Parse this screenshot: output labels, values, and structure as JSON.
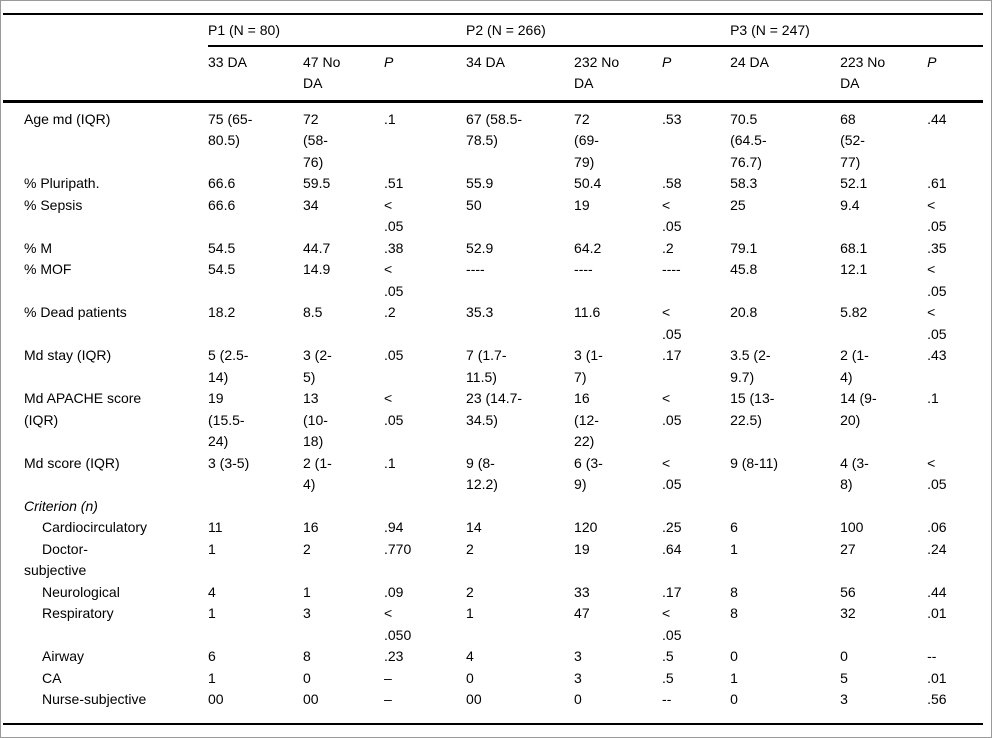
{
  "table": {
    "groups": [
      {
        "label": "P1 (N = 80)"
      },
      {
        "label": "P2 (N = 266)"
      },
      {
        "label": "P3 (N = 247)"
      }
    ],
    "subheaders": [
      "33 DA",
      "47 No\nDA",
      "P",
      "34 DA",
      "232 No\nDA",
      "P",
      "24 DA",
      "223 No\nDA",
      "P"
    ],
    "rows": [
      {
        "label": "Age md (IQR)",
        "indent": false,
        "italic": false,
        "cells": [
          "75 (65-\n80.5)",
          "72\n(58-\n76)",
          ".1",
          "67 (58.5-\n78.5)",
          "72\n(69-\n79)",
          ".53",
          "70.5\n(64.5-\n76.7)",
          "68\n(52-\n77)",
          ".44"
        ]
      },
      {
        "label": "% Pluripath.",
        "indent": false,
        "italic": false,
        "cells": [
          "66.6",
          "59.5",
          ".51",
          "55.9",
          "50.4",
          ".58",
          "58.3",
          "52.1",
          ".61"
        ]
      },
      {
        "label": "% Sepsis",
        "indent": false,
        "italic": false,
        "cells": [
          "66.6",
          "34",
          "<\n.05",
          "50",
          "19",
          "<\n.05",
          "25",
          "9.4",
          "<\n.05"
        ]
      },
      {
        "label": "% M",
        "indent": false,
        "italic": false,
        "cells": [
          "54.5",
          "44.7",
          ".38",
          "52.9",
          "64.2",
          ".2",
          "79.1",
          "68.1",
          ".35"
        ]
      },
      {
        "label": "% MOF",
        "indent": false,
        "italic": false,
        "cells": [
          "54.5",
          "14.9",
          "<\n.05",
          "----",
          "----",
          "----",
          "45.8",
          "12.1",
          "<\n.05"
        ]
      },
      {
        "label": "% Dead patients",
        "indent": false,
        "italic": false,
        "cells": [
          "18.2",
          "8.5",
          ".2",
          "35.3",
          "11.6",
          "<\n.05",
          "20.8",
          "5.82",
          "<\n.05"
        ]
      },
      {
        "label": "Md stay (IQR)",
        "indent": false,
        "italic": false,
        "cells": [
          "5 (2.5-\n14)",
          "3 (2-\n5)",
          ".05",
          "7 (1.7-\n11.5)",
          "3 (1-\n7)",
          ".17",
          "3.5 (2-\n9.7)",
          "2 (1-\n4)",
          ".43"
        ]
      },
      {
        "label": "Md APACHE score\n(IQR)",
        "indent": false,
        "italic": false,
        "cells": [
          "19\n(15.5-\n24)",
          "13\n(10-\n18)",
          "<\n.05",
          "23 (14.7-\n34.5)",
          "16\n(12-\n22)",
          "<\n.05",
          "15 (13-\n22.5)",
          "14 (9-\n20)",
          ".1"
        ]
      },
      {
        "label": "Md score (IQR)",
        "indent": false,
        "italic": false,
        "cells": [
          "3 (3-5)",
          "2 (1-\n4)",
          ".1",
          "9 (8-\n12.2)",
          "6 (3-\n9)",
          "<\n.05",
          "9 (8-11)",
          "4 (3-\n8)",
          "<\n.05"
        ]
      },
      {
        "label": "Criterion (n)",
        "indent": false,
        "italic": true,
        "cells": [
          "",
          "",
          "",
          "",
          "",
          "",
          "",
          "",
          ""
        ]
      },
      {
        "label": "Cardiocirculatory",
        "indent": true,
        "italic": false,
        "cells": [
          "11",
          "16",
          ".94",
          "14",
          "120",
          ".25",
          "6",
          "100",
          ".06"
        ]
      },
      {
        "label": "Doctor-\nsubjective",
        "indent": true,
        "italic": false,
        "cells": [
          "1",
          "2",
          ".770",
          "2",
          "19",
          ".64",
          "1",
          "27",
          ".24"
        ]
      },
      {
        "label": "Neurological",
        "indent": true,
        "italic": false,
        "cells": [
          "4",
          "1",
          ".09",
          "2",
          "33",
          ".17",
          "8",
          "56",
          ".44"
        ]
      },
      {
        "label": "Respiratory",
        "indent": true,
        "italic": false,
        "cells": [
          "1",
          "3",
          "<\n.050",
          "1",
          "47",
          "<\n.05",
          "8",
          "32",
          ".01"
        ]
      },
      {
        "label": "Airway",
        "indent": true,
        "italic": false,
        "cells": [
          "6",
          "8",
          ".23",
          "4",
          "3",
          ".5",
          "0",
          "0",
          "--"
        ]
      },
      {
        "label": "CA",
        "indent": true,
        "italic": false,
        "cells": [
          "1",
          "0",
          "–",
          "0",
          "3",
          ".5",
          "1",
          "5",
          ".01"
        ]
      },
      {
        "label": "Nurse-subjective",
        "indent": true,
        "italic": false,
        "cells": [
          "00",
          "00",
          "–",
          "00",
          "0",
          "--",
          "0",
          "3",
          ".56"
        ]
      }
    ]
  }
}
